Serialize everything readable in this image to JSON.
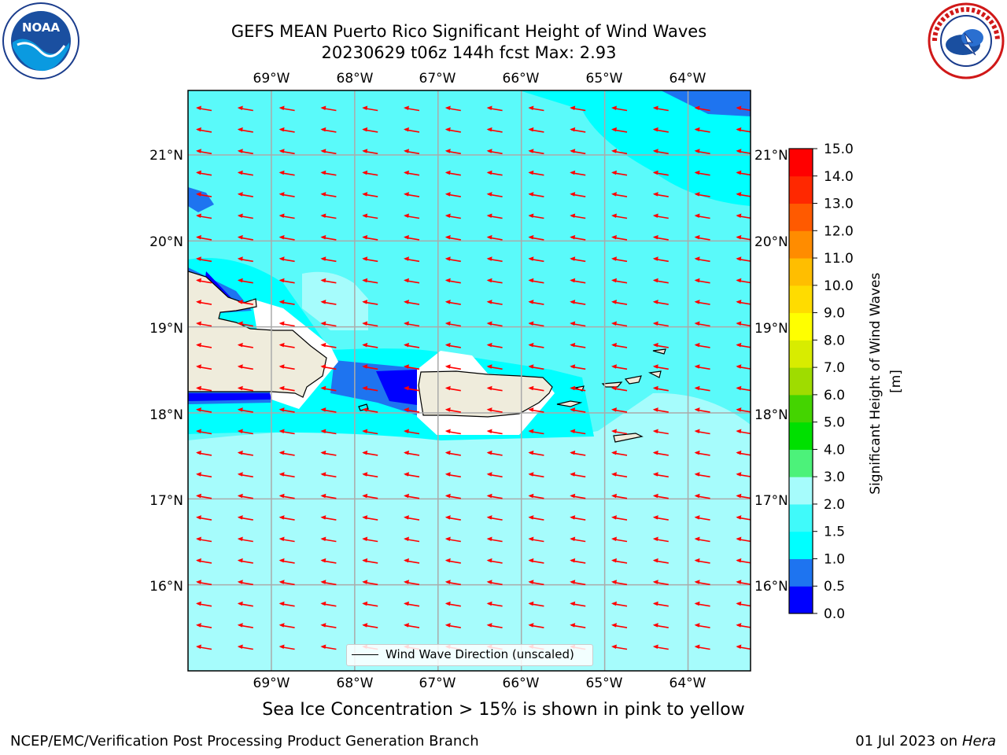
{
  "header": {
    "title_line1": "GEFS MEAN Puerto Rico Significant Height of Wind Waves",
    "title_line2": "20230629 t06z 144h fcst   Max: 2.93"
  },
  "logos": {
    "left": {
      "icon": "noaa-logo-icon",
      "text": "NOAA"
    },
    "right": {
      "icon": "nws-logo-icon",
      "text": "NATIONAL WEATHER SERVICE"
    }
  },
  "map": {
    "lon_range": [
      -70,
      -63.25
    ],
    "lat_range": [
      15,
      21.75
    ],
    "lon_ticks": [
      "69°W",
      "68°W",
      "67°W",
      "66°W",
      "65°W",
      "64°W"
    ],
    "lat_ticks": [
      "21°N",
      "20°N",
      "19°N",
      "18°N",
      "17°N",
      "16°N"
    ],
    "grid": true,
    "dominant_wave_direction": "east-to-west (arrows point west)",
    "arrow_color": "#ff0000",
    "land_color": "#efecdc"
  },
  "legend": {
    "label": "Wind Wave Direction (unscaled)",
    "location": "lower center"
  },
  "colorbar": {
    "label": "Significant Height of Wind Waves [m]",
    "ticks": [
      "0.0",
      "0.5",
      "1.0",
      "1.5",
      "2.0",
      "3.0",
      "4.0",
      "5.0",
      "6.0",
      "7.0",
      "8.0",
      "9.0",
      "10.0",
      "11.0",
      "12.0",
      "13.0",
      "14.0",
      "15.0"
    ],
    "colors": [
      "#0000ff",
      "#1e74f0",
      "#00ffff",
      "#40fafa",
      "#a6fcfc",
      "#4cf27a",
      "#00e000",
      "#44d400",
      "#9fdc00",
      "#d8ec00",
      "#ffff00",
      "#ffdc00",
      "#ffbe00",
      "#ff8c00",
      "#ff5a00",
      "#ff2800",
      "#ff0000"
    ]
  },
  "caption": "Sea Ice Concentration > 15% is shown in pink to yellow",
  "footer": {
    "left": "NCEP/EMC/Verification Post Processing Product Generation Branch",
    "right_date": "01 Jul 2023 on ",
    "right_host": "Hera"
  }
}
